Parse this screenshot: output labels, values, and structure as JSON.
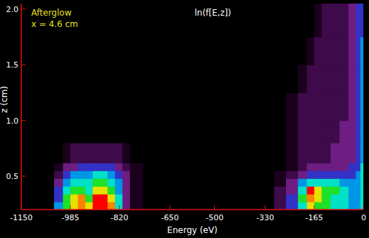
{
  "chart_data": {
    "type": "heatmap",
    "title": "ln(f[E,z])",
    "annotations": [
      "Afterglow",
      "x = 4.6 cm"
    ],
    "x_label": "Energy (eV)",
    "y_label": "z (cm)",
    "xlim": [
      -1150,
      0
    ],
    "xticks": [
      -1150,
      -985,
      -820,
      -650,
      -500,
      -330,
      -165,
      0
    ],
    "ylim": [
      0.2,
      2.05
    ],
    "yticks": [
      0.5,
      1.0,
      1.5,
      2.0
    ],
    "value_range": [
      0,
      10
    ],
    "x_edges": [
      -1150,
      -1040,
      -1010,
      -985,
      -960,
      -935,
      -910,
      -885,
      -860,
      -835,
      -810,
      -785,
      -740,
      -600,
      -300,
      -260,
      -220,
      -190,
      -165,
      -140,
      -110,
      -80,
      -50,
      -25,
      -10,
      0
    ],
    "y_edges": [
      0.2,
      0.27,
      0.34,
      0.41,
      0.48,
      0.55,
      0.62,
      0.8,
      1.0,
      1.25,
      1.5,
      1.75,
      2.05
    ],
    "cells": [
      [
        0,
        5,
        7,
        8,
        9,
        8,
        10,
        10,
        9,
        6,
        3,
        1,
        0,
        0,
        2,
        4,
        6,
        8,
        7,
        7,
        6,
        6,
        5,
        5,
        6
      ],
      [
        0,
        4,
        7,
        8,
        9,
        7,
        10,
        10,
        8,
        6,
        3,
        1,
        0,
        0,
        2,
        4,
        7,
        9,
        8,
        7,
        6,
        6,
        5,
        5,
        6
      ],
      [
        0,
        4,
        6,
        7,
        7,
        6,
        8,
        8,
        7,
        5,
        3,
        1,
        0,
        0,
        2,
        3,
        6,
        10,
        8,
        7,
        7,
        6,
        5,
        5,
        6
      ],
      [
        0,
        3,
        5,
        6,
        6,
        6,
        7,
        7,
        6,
        5,
        3,
        1,
        0,
        0,
        1,
        3,
        5,
        6,
        6,
        6,
        6,
        5,
        5,
        5,
        6
      ],
      [
        0,
        2,
        4,
        5,
        5,
        5,
        6,
        6,
        5,
        4,
        3,
        1,
        0,
        0,
        1,
        2,
        3,
        4,
        4,
        4,
        4,
        4,
        4,
        5,
        6
      ],
      [
        0,
        1,
        3,
        3,
        4,
        4,
        4,
        4,
        4,
        3,
        2,
        1,
        0,
        0,
        0,
        1,
        2,
        3,
        3,
        3,
        3,
        3,
        4,
        4,
        6
      ],
      [
        0,
        0,
        1,
        2,
        2,
        2,
        2,
        2,
        2,
        2,
        1,
        0,
        0,
        0,
        0,
        1,
        2,
        2,
        2,
        2,
        3,
        3,
        3,
        4,
        5
      ],
      [
        0,
        0,
        0,
        0,
        0,
        0,
        0,
        0,
        0,
        0,
        0,
        0,
        0,
        0,
        0,
        1,
        2,
        2,
        2,
        2,
        2,
        3,
        3,
        4,
        5
      ],
      [
        0,
        0,
        0,
        0,
        0,
        0,
        0,
        0,
        0,
        0,
        0,
        0,
        0,
        0,
        0,
        1,
        2,
        2,
        2,
        2,
        2,
        2,
        3,
        4,
        5
      ],
      [
        0,
        0,
        0,
        0,
        0,
        0,
        0,
        0,
        0,
        0,
        0,
        0,
        0,
        0,
        0,
        0,
        1,
        2,
        2,
        2,
        2,
        2,
        3,
        4,
        5
      ],
      [
        0,
        0,
        0,
        0,
        0,
        0,
        0,
        0,
        0,
        0,
        0,
        0,
        0,
        0,
        0,
        0,
        0,
        1,
        2,
        2,
        2,
        2,
        3,
        4,
        5
      ],
      [
        0,
        0,
        0,
        0,
        0,
        0,
        0,
        0,
        0,
        0,
        0,
        0,
        0,
        0,
        0,
        0,
        0,
        0,
        1,
        2,
        2,
        2,
        3,
        4,
        4
      ]
    ]
  }
}
